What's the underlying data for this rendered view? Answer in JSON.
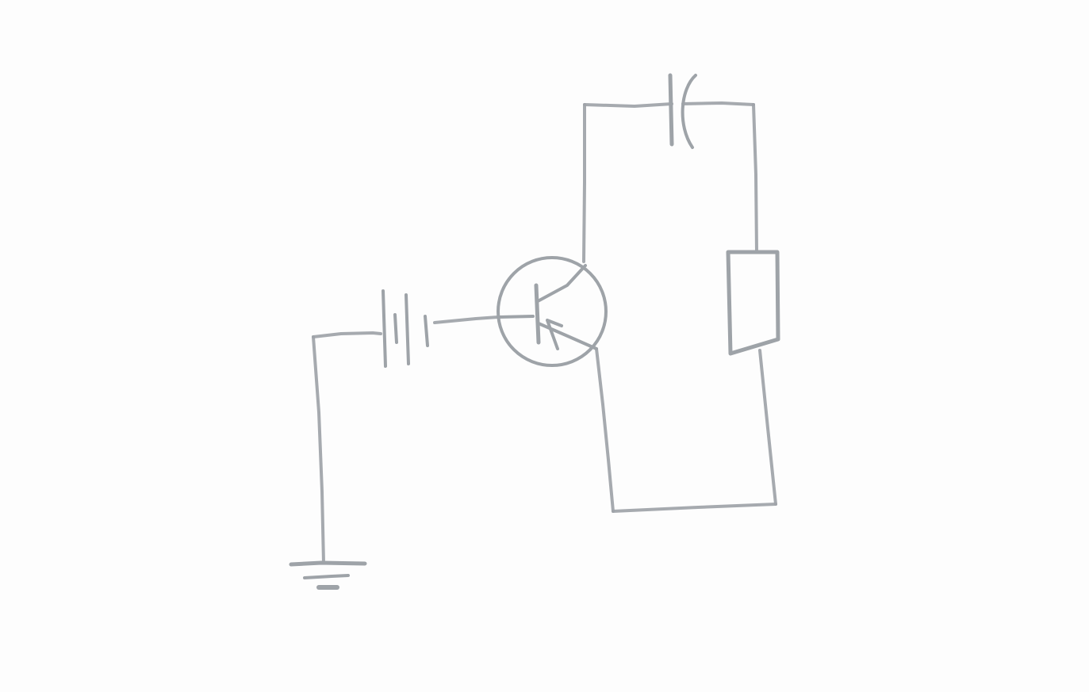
{
  "colors": {
    "paper": "#fdfdfd",
    "pencil": "#9ea3a8"
  },
  "diagram": {
    "components": [
      {
        "name": "ground-symbol"
      },
      {
        "name": "battery-symbol"
      },
      {
        "name": "transistor-symbol"
      },
      {
        "name": "capacitor-symbol"
      },
      {
        "name": "resistor-symbol"
      }
    ]
  }
}
